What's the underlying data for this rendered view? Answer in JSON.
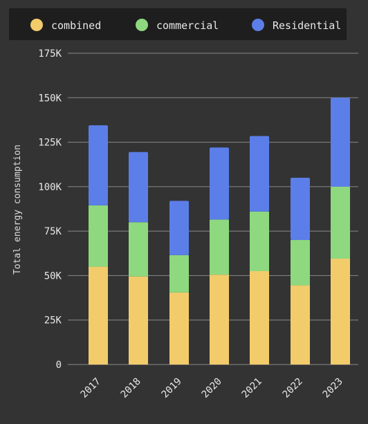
{
  "chart_data": {
    "type": "bar",
    "stacked": true,
    "categories": [
      "2017",
      "2018",
      "2019",
      "2020",
      "2021",
      "2022",
      "2023"
    ],
    "series": [
      {
        "name": "combined",
        "color": "#f2cc6b",
        "values": [
          55000,
          49500,
          40500,
          50500,
          52500,
          44500,
          59500
        ]
      },
      {
        "name": "commercial",
        "color": "#8ed87f",
        "values": [
          34500,
          30500,
          21000,
          31000,
          33500,
          25500,
          40500
        ]
      },
      {
        "name": "Residential",
        "color": "#5b7ee8",
        "values": [
          45000,
          39500,
          30500,
          40500,
          42500,
          35000,
          50000
        ]
      }
    ],
    "ylabel": "Total energy consumption",
    "yticks": [
      "0",
      "25K",
      "50K",
      "75K",
      "100K",
      "125K",
      "150K",
      "175K"
    ],
    "yticks_values": [
      0,
      25000,
      50000,
      75000,
      100000,
      125000,
      150000,
      175000
    ],
    "ylim": [
      0,
      175000
    ],
    "grid": true,
    "legend_position": "top",
    "colors": {
      "background": "#333333",
      "legend_background": "#1e1e1e",
      "grid": "#8a8a8a",
      "text": "#e8e8e8"
    }
  }
}
